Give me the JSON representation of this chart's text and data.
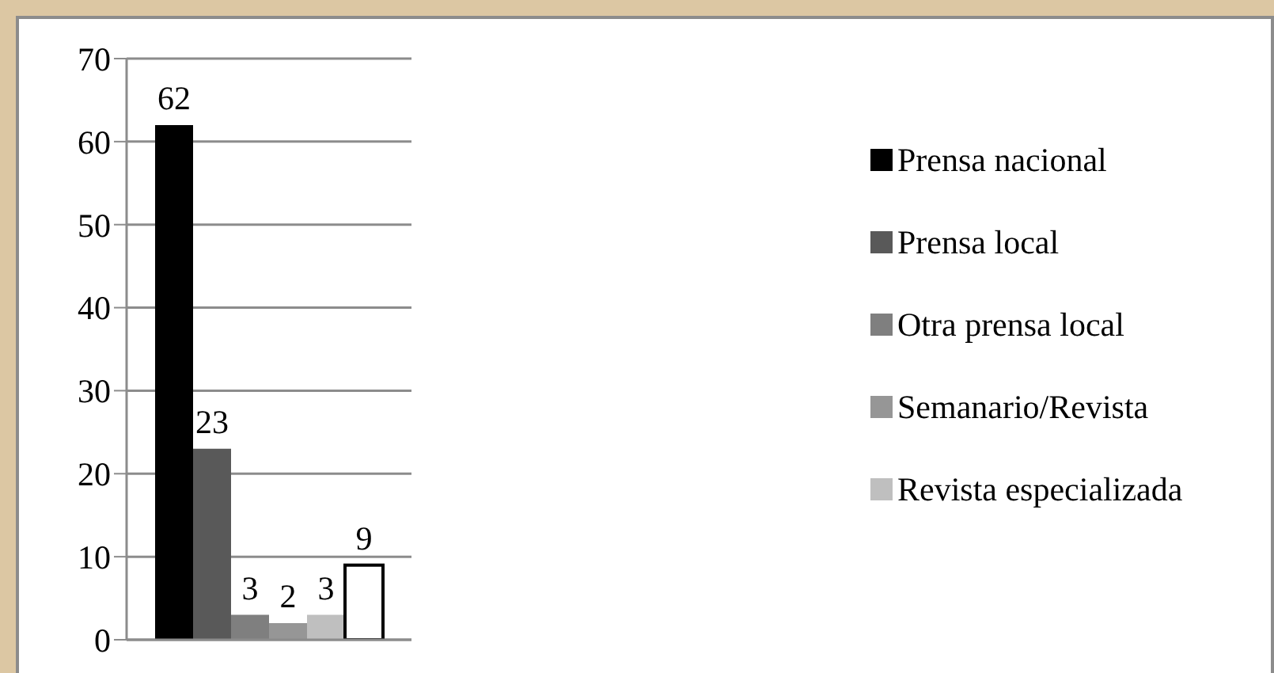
{
  "chart_data": {
    "type": "bar",
    "categories": [
      null
    ],
    "series": [
      {
        "name": "Prensa nacional",
        "color": "#000000",
        "values": [
          62
        ]
      },
      {
        "name": "Prensa local",
        "color": "#595959",
        "values": [
          23
        ]
      },
      {
        "name": "Otra prensa local",
        "color": "#7f7f7f",
        "values": [
          3
        ]
      },
      {
        "name": "Semanario/Revista",
        "color": "#969696",
        "values": [
          2
        ]
      },
      {
        "name": "Revista especializada",
        "color": "#bfbfbf",
        "values": [
          3
        ]
      },
      {
        "color": "#ffffff",
        "values": [
          9
        ]
      }
    ],
    "ylim": [
      0,
      70
    ],
    "yticks": [
      0,
      10,
      20,
      30,
      40,
      50,
      60,
      70
    ],
    "grid": "y",
    "legend": "right",
    "data_labels": true
  }
}
